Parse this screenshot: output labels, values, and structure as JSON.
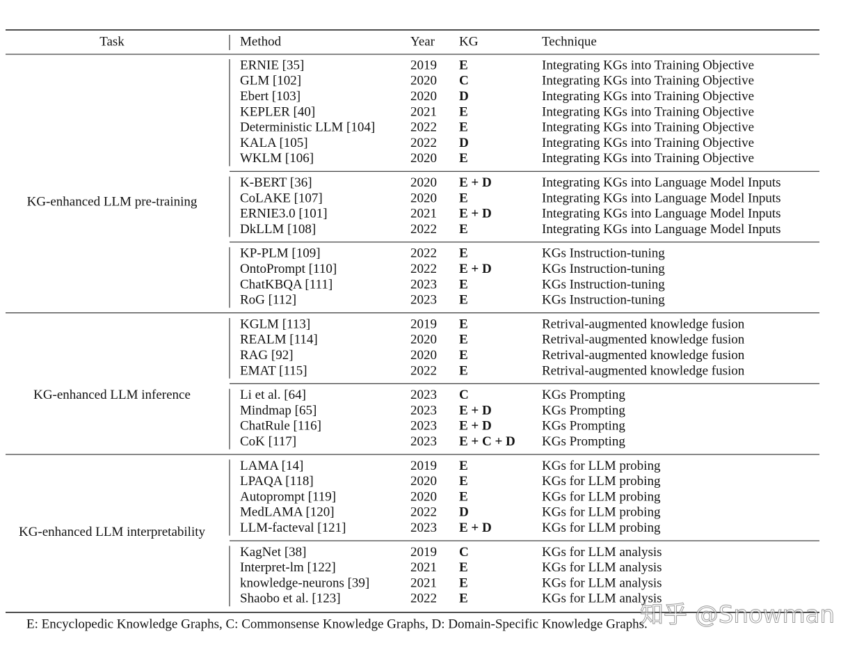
{
  "table": {
    "header": [
      "Task",
      "Method",
      "Year",
      "KG",
      "Technique"
    ],
    "sections": [
      {
        "task": "KG-enhanced LLM pre-training",
        "groups": [
          {
            "rows": [
              [
                "ERNIE [35]",
                2019,
                "E",
                "Integrating KGs into Training Objective"
              ],
              [
                "GLM [102]",
                2020,
                "C",
                "Integrating KGs into Training Objective"
              ],
              [
                "Ebert [103]",
                2020,
                "D",
                "Integrating KGs into Training Objective"
              ],
              [
                "KEPLER [40]",
                2021,
                "E",
                "Integrating KGs into Training Objective"
              ],
              [
                "Deterministic LLM [104]",
                2022,
                "E",
                "Integrating KGs into Training Objective"
              ],
              [
                "KALA [105]",
                2022,
                "D",
                "Integrating KGs into Training Objective"
              ],
              [
                "WKLM [106]",
                2020,
                "E",
                "Integrating KGs into Training Objective"
              ]
            ]
          },
          {
            "rows": [
              [
                "K-BERT [36]",
                2020,
                "E + D",
                "Integrating KGs into Language Model Inputs"
              ],
              [
                "CoLAKE [107]",
                2020,
                "E",
                "Integrating KGs into Language Model Inputs"
              ],
              [
                "ERNIE3.0 [101]",
                2021,
                "E + D",
                "Integrating KGs into Language Model Inputs"
              ],
              [
                "DkLLM [108]",
                2022,
                "E",
                "Integrating KGs into Language Model Inputs"
              ]
            ]
          },
          {
            "rows": [
              [
                "KP-PLM [109]",
                2022,
                "E",
                "KGs Instruction-tuning"
              ],
              [
                "OntoPrompt [110]",
                2022,
                "E + D",
                "KGs Instruction-tuning"
              ],
              [
                "ChatKBQA [111]",
                2023,
                "E",
                "KGs Instruction-tuning"
              ],
              [
                "RoG [112]",
                2023,
                "E",
                "KGs Instruction-tuning"
              ]
            ]
          }
        ]
      },
      {
        "task": "KG-enhanced LLM inference",
        "groups": [
          {
            "rows": [
              [
                "KGLM [113]",
                2019,
                "E",
                "Retrival-augmented knowledge fusion"
              ],
              [
                "REALM [114]",
                2020,
                "E",
                "Retrival-augmented knowledge fusion"
              ],
              [
                "RAG [92]",
                2020,
                "E",
                "Retrival-augmented knowledge fusion"
              ],
              [
                "EMAT [115]",
                2022,
                "E",
                "Retrival-augmented knowledge fusion"
              ]
            ]
          },
          {
            "rows": [
              [
                "Li et al. [64]",
                2023,
                "C",
                "KGs Prompting"
              ],
              [
                "Mindmap [65]",
                2023,
                "E + D",
                "KGs Prompting"
              ],
              [
                "ChatRule [116]",
                2023,
                "E + D",
                "KGs Prompting"
              ],
              [
                "CoK [117]",
                2023,
                "E + C + D",
                "KGs Prompting"
              ]
            ]
          }
        ]
      },
      {
        "task": "KG-enhanced LLM interpretability",
        "groups": [
          {
            "rows": [
              [
                "LAMA [14]",
                2019,
                "E",
                "KGs for LLM probing"
              ],
              [
                "LPAQA [118]",
                2020,
                "E",
                "KGs for LLM probing"
              ],
              [
                "Autoprompt [119]",
                2020,
                "E",
                "KGs for LLM probing"
              ],
              [
                "MedLAMA [120]",
                2022,
                "D",
                "KGs for LLM probing"
              ],
              [
                "LLM-facteval [121]",
                2023,
                "E + D",
                "KGs for LLM probing"
              ]
            ]
          },
          {
            "rows": [
              [
                "KagNet [38]",
                2019,
                "C",
                "KGs for LLM analysis"
              ],
              [
                "Interpret-lm [122]",
                2021,
                "E",
                "KGs for LLM analysis"
              ],
              [
                "knowledge-neurons [39]",
                2021,
                "E",
                "KGs for LLM analysis"
              ],
              [
                "Shaobo et al. [123]",
                2022,
                "E",
                "KGs for LLM analysis"
              ]
            ]
          }
        ]
      }
    ]
  },
  "footnote": "E: Encyclopedic Knowledge Graphs, C: Commonsense Knowledge Graphs, D: Domain-Specific Knowledge Graphs.",
  "watermark": "知乎 @Snowman"
}
